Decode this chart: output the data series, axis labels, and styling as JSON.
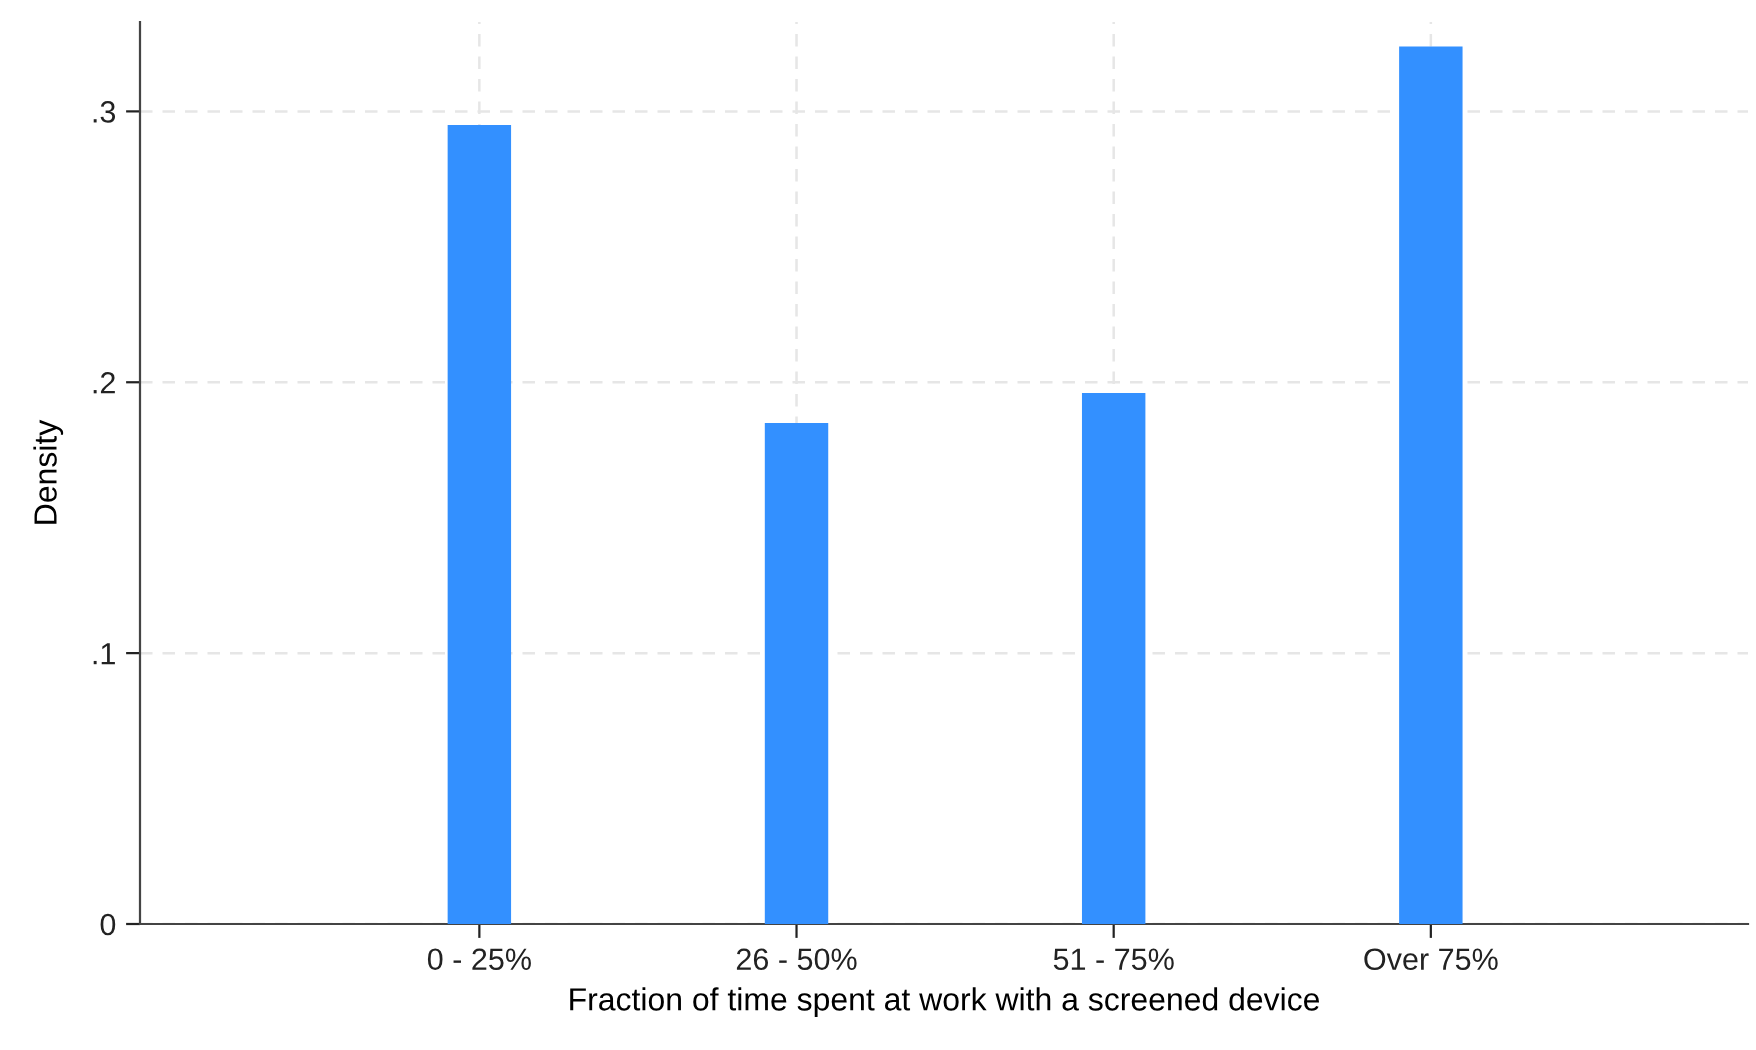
{
  "chart_data": {
    "type": "bar",
    "xlabel": "Fraction of time spent at work with a screened device",
    "ylabel": "Density",
    "categories": [
      "0 - 25%",
      "26 - 50%",
      "51 - 75%",
      "Over 75%"
    ],
    "values": [
      0.295,
      0.185,
      0.196,
      0.324
    ],
    "color": "#3390ff",
    "ylim": [
      0,
      0.333
    ],
    "yticks": [
      {
        "value": 0,
        "label": "0"
      },
      {
        "value": 0.1,
        "label": ".1"
      },
      {
        "value": 0.2,
        "label": ".2"
      },
      {
        "value": 0.3,
        "label": ".3"
      }
    ],
    "grid": true
  }
}
